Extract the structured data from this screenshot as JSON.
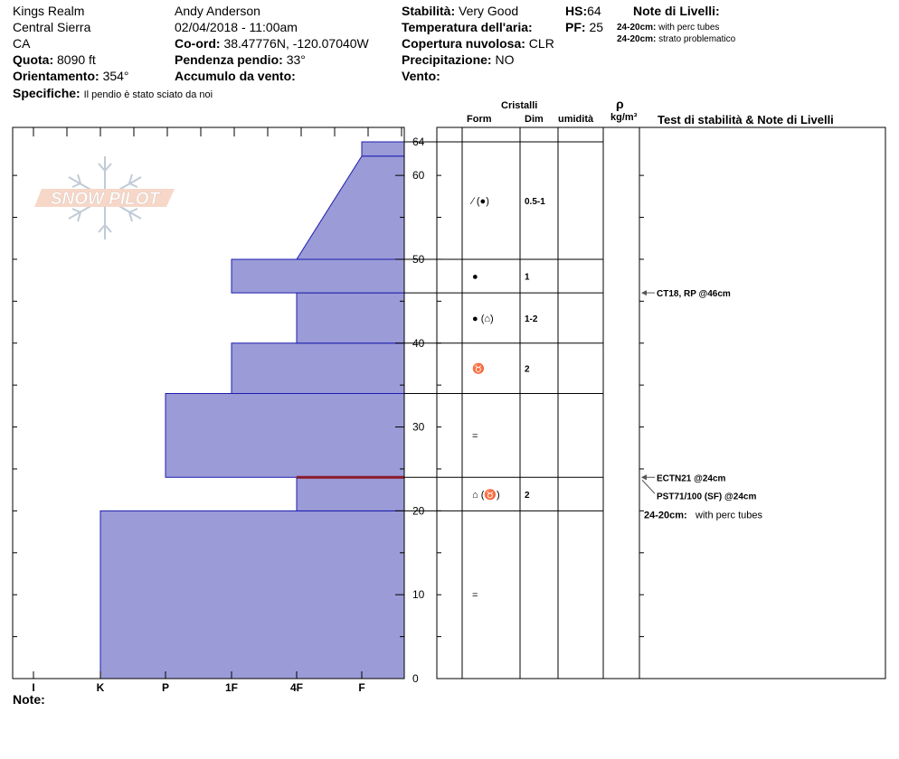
{
  "header": {
    "location": "Kings Realm",
    "range": "Central Sierra",
    "state": "CA",
    "elevation_label": "Quota:",
    "elevation": "8090 ft",
    "aspect_label": "Orientamento:",
    "aspect": "354°",
    "specifics_label": "Specifiche:",
    "specifics": "Il pendio è stato sciato da noi",
    "observer": "Andy Anderson",
    "datetime": "02/04/2018 - 11:00am",
    "coord_label": "Co-ord:",
    "coord": "38.47776N, -120.07040W",
    "slope_label": "Pendenza pendio:",
    "slope": "33°",
    "wind_load_label": "Accumulo da vento:",
    "wind_load": "",
    "stability_label": "Stabilità:",
    "stability": "Very Good",
    "air_temp_label": "Temperatura dell'aria:",
    "air_temp": "",
    "cloud_label": "Copertura nuvolosa:",
    "cloud": "CLR",
    "precip_label": "Precipitazione:",
    "precip": "NO",
    "wind_label": "Vento:",
    "wind": "",
    "hs_label": "HS:",
    "hs": "64",
    "pf_label": "PF:",
    "pf": "25",
    "layer_notes_title": "Note di Livelli:",
    "layer_notes": [
      {
        "depth": "24-20cm:",
        "text": "with perc tubes"
      },
      {
        "depth": "24-20cm:",
        "text": "strato problematico"
      }
    ]
  },
  "logo_text": "SNOW PILOT",
  "table_headers": {
    "crystals": "Cristalli",
    "form": "Form",
    "size": "Dim",
    "moisture": "umidità",
    "density_symbol": "ρ",
    "density_unit": "kg/m³",
    "tests": "Test di stabilità & Note di Livelli"
  },
  "note_label": "Note:",
  "colors": {
    "layer_fill": "#9b9bd7",
    "layer_stroke": "#1c1cb0",
    "weak_layer": "#8b1a2a"
  },
  "chart_data": {
    "type": "area",
    "title": "",
    "xlabel": "",
    "ylabel": "",
    "ylim": [
      0,
      64
    ],
    "hardness_scale": [
      "I",
      "K",
      "P",
      "1F",
      "4F",
      "F"
    ],
    "y_ticks": [
      0,
      10,
      20,
      30,
      40,
      50,
      60,
      64
    ],
    "hardness_profile": [
      {
        "bottom": 0,
        "top": 20,
        "hardness": "K"
      },
      {
        "bottom": 20,
        "top": 24,
        "hardness": "4F"
      },
      {
        "bottom": 24,
        "top": 34,
        "hardness": "P"
      },
      {
        "bottom": 34,
        "top": 40,
        "hardness": "1F"
      },
      {
        "bottom": 40,
        "top": 46,
        "hardness": "4F"
      },
      {
        "bottom": 46,
        "top": 50,
        "hardness": "1F"
      },
      {
        "bottom": 50,
        "top": 62.3,
        "hardness_bottom": "4F",
        "hardness_top": "F"
      },
      {
        "bottom": 62.3,
        "top": 64,
        "hardness": "F"
      }
    ],
    "weak_layer_depth": 24,
    "layers": [
      {
        "bottom": 50,
        "top": 64,
        "form": "⁄ (●)",
        "size": "0.5-1"
      },
      {
        "bottom": 46,
        "top": 50,
        "form": "●",
        "size": "1"
      },
      {
        "bottom": 40,
        "top": 46,
        "form": "● (⌂)",
        "size": "1-2"
      },
      {
        "bottom": 34,
        "top": 40,
        "form": "♉",
        "size": "2"
      },
      {
        "bottom": 24,
        "top": 34,
        "form": "=",
        "size": ""
      },
      {
        "bottom": 20,
        "top": 24,
        "form": "⌂ (♉)",
        "size": "2"
      },
      {
        "bottom": 0,
        "top": 20,
        "form": "=",
        "size": ""
      }
    ],
    "tests": [
      {
        "depth": 46,
        "label": "CT18, RP @46cm"
      },
      {
        "depth": 24,
        "label": "ECTN21 @24cm"
      },
      {
        "depth": 24,
        "label": "PST71/100 (SF) @24cm"
      }
    ],
    "layer_note_in_chart": {
      "depth_label": "24-20cm:",
      "text": "with perc tubes"
    }
  }
}
